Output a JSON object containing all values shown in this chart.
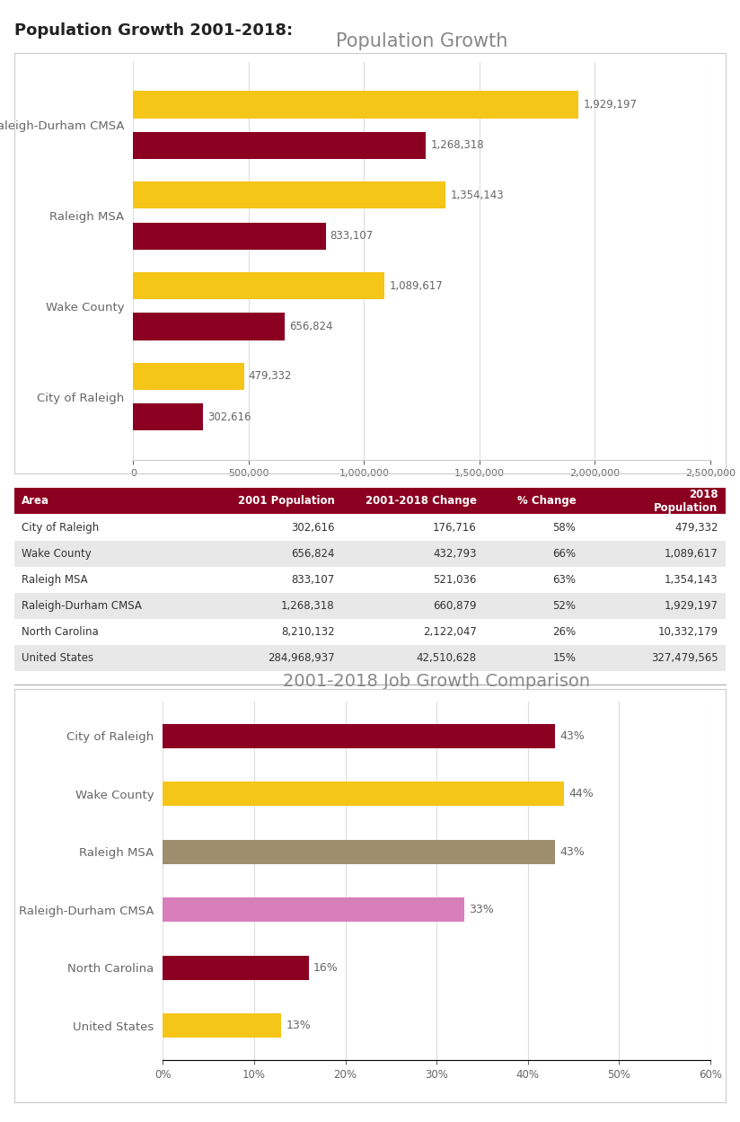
{
  "page_title": "Population Growth 2001-2018:",
  "chart1_title": "Population Growth",
  "chart1_categories": [
    "City of Raleigh",
    "Wake County",
    "Raleigh MSA",
    "Raleigh-Durham CMSA"
  ],
  "chart1_2018": [
    479332,
    1089617,
    1354143,
    1929197
  ],
  "chart1_2001": [
    302616,
    656824,
    833107,
    1268318
  ],
  "chart1_color_2018": "#F5C518",
  "chart1_color_2001": "#8B0020",
  "chart1_xlim": [
    0,
    2500000
  ],
  "chart1_xticks": [
    0,
    500000,
    1000000,
    1500000,
    2000000,
    2500000
  ],
  "table_header": [
    "Area",
    "2001 Population",
    "2001-2018 Change",
    "% Change",
    "2018\nPopulation"
  ],
  "table_header_color": "#8B0020",
  "table_rows": [
    [
      "City of Raleigh",
      "302,616",
      "176,716",
      "58%",
      "479,332"
    ],
    [
      "Wake County",
      "656,824",
      "432,793",
      "66%",
      "1,089,617"
    ],
    [
      "Raleigh MSA",
      "833,107",
      "521,036",
      "63%",
      "1,354,143"
    ],
    [
      "Raleigh-Durham CMSA",
      "1,268,318",
      "660,879",
      "52%",
      "1,929,197"
    ],
    [
      "North Carolina",
      "8,210,132",
      "2,122,047",
      "26%",
      "10,332,179"
    ],
    [
      "United States",
      "284,968,937",
      "42,510,628",
      "15%",
      "327,479,565"
    ]
  ],
  "table_row_colors": [
    "#FFFFFF",
    "#E8E8E8",
    "#FFFFFF",
    "#E8E8E8",
    "#FFFFFF",
    "#E8E8E8"
  ],
  "chart2_title": "2001-2018 Job Growth Comparison",
  "chart2_categories": [
    "United States",
    "North Carolina",
    "Raleigh-Durham CMSA",
    "Raleigh MSA",
    "Wake County",
    "City of Raleigh"
  ],
  "chart2_values": [
    13,
    16,
    33,
    43,
    44,
    43
  ],
  "chart2_colors": [
    "#F5C518",
    "#8B0020",
    "#D87EBB",
    "#9E8E6E",
    "#F5C518",
    "#8B0020"
  ],
  "chart2_xlim": [
    0,
    60
  ],
  "chart2_xticks": [
    0,
    10,
    20,
    30,
    40,
    50,
    60
  ],
  "chart2_legend": [
    {
      "label": "City of Raleigh",
      "color": "#8B0020"
    },
    {
      "label": "Wake County",
      "color": "#F5C518"
    },
    {
      "label": "Raleigh MSA",
      "color": "#9E8E6E"
    },
    {
      "label": "Raleigh-Durham CMSA",
      "color": "#D87EBB"
    },
    {
      "label": "North Carolina",
      "color": "#8B0020"
    },
    {
      "label": "United States",
      "color": "#F5C518"
    }
  ],
  "background_color": "#FFFFFF",
  "chart_bg_color": "#FFFFFF",
  "border_color": "#CCCCCC"
}
